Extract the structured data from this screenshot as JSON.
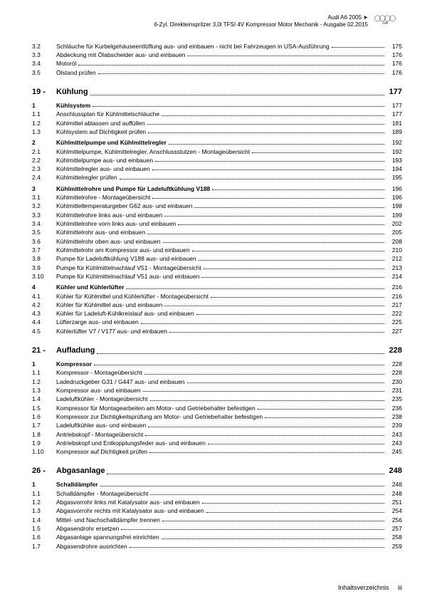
{
  "header": {
    "line1": "Audi A6 2005 ➤",
    "line2": "6-Zyl. Direkteinspritzer 3,0l TFSI 4V Kompressor Motor Mechanik - Ausgabe 02.2015",
    "logo_label": "Audi"
  },
  "continuation": [
    {
      "num": "3.2",
      "label": "Schläuche für Kurbelgehäuseentlüftung aus- und einbauen - nicht bei Fahrzeugen in USA-Ausführung",
      "page": "175"
    },
    {
      "num": "3.3",
      "label": "Abdeckung mit Ölabscheider aus- und einbauen",
      "page": "176"
    },
    {
      "num": "3.4",
      "label": "Motoröl",
      "page": "176"
    },
    {
      "num": "3.5",
      "label": "Ölstand prüfen",
      "page": "176"
    }
  ],
  "sections": [
    {
      "num": "19",
      "title": "Kühlung",
      "page": "177",
      "groups": [
        {
          "num": "1",
          "label": "Kühlsystem",
          "page": "177",
          "bold": true
        },
        {
          "num": "1.1",
          "label": "Anschlussplan für Kühlmittelschläuche",
          "page": "177"
        },
        {
          "num": "1.2",
          "label": "Kühlmittel ablassen und auffüllen",
          "page": "181"
        },
        {
          "num": "1.3",
          "label": "Kühlsystem auf Dichtigkeit prüfen",
          "page": "189"
        },
        {
          "num": "2",
          "label": "Kühlmittelpumpe und Kühlmittelregler",
          "page": "192",
          "bold": true
        },
        {
          "num": "2.1",
          "label": "Kühlmittelpumpe, Kühlmittelregler, Anschlussstutzen - Montageübersicht",
          "page": "192"
        },
        {
          "num": "2.2",
          "label": "Kühlmittelpumpe aus- und einbauen",
          "page": "193"
        },
        {
          "num": "2.3",
          "label": "Kühlmittelregler aus- und einbauen",
          "page": "194"
        },
        {
          "num": "2.4",
          "label": "Kühlmittelregler prüfen",
          "page": "195"
        },
        {
          "num": "3",
          "label": "Kühlmittelrohre und Pumpe für Ladeluftkühlung V188",
          "page": "196",
          "bold": true
        },
        {
          "num": "3.1",
          "label": "Kühlmittelrohre - Montageübersicht",
          "page": "196"
        },
        {
          "num": "3.2",
          "label": "Kühlmitteltemperaturgeber G62 aus- und einbauen",
          "page": "198"
        },
        {
          "num": "3.3",
          "label": "Kühlmittelrohre links aus- und einbauen",
          "page": "199"
        },
        {
          "num": "3.4",
          "label": "Kühlmittelrohre vorn links aus- und einbauen",
          "page": "202"
        },
        {
          "num": "3.5",
          "label": "Kühlmittelrohr aus- und einbauen",
          "page": "205"
        },
        {
          "num": "3.6",
          "label": "Kühlmittelrohr oben aus- und einbauen",
          "page": "208"
        },
        {
          "num": "3.7",
          "label": "Kühlmittelrohr am Kompressor aus- und einbauen",
          "page": "210"
        },
        {
          "num": "3.8",
          "label": "Pumpe für Ladeluftkühlung V188 aus- und einbauen",
          "page": "212"
        },
        {
          "num": "3.9",
          "label": "Pumpe für Kühlmittelnachlauf V51 - Montageübersicht",
          "page": "213"
        },
        {
          "num": "3.10",
          "label": "Pumpe für Kühlmittelnachlauf V51 aus- und einbauen",
          "page": "214"
        },
        {
          "num": "4",
          "label": "Kühler und Kühlerlüfter",
          "page": "216",
          "bold": true
        },
        {
          "num": "4.1",
          "label": "Kühler für Kühlmittel und Kühlerlüfter - Montageübersicht",
          "page": "216"
        },
        {
          "num": "4.2",
          "label": "Kühler für Kühlmittel aus- und einbauen",
          "page": "217"
        },
        {
          "num": "4.3",
          "label": "Kühler für Ladeluft-Kühlkreislauf aus- und einbauen",
          "page": "222"
        },
        {
          "num": "4.4",
          "label": "Lüfterzarge aus- und einbauen",
          "page": "225"
        },
        {
          "num": "4.5",
          "label": "Kühlerlüfter V7 / V177 aus- und einbauen",
          "page": "227"
        }
      ]
    },
    {
      "num": "21",
      "title": "Aufladung",
      "page": "228",
      "groups": [
        {
          "num": "1",
          "label": "Kompressor",
          "page": "228",
          "bold": true
        },
        {
          "num": "1.1",
          "label": "Kompressor - Montageübersicht",
          "page": "228"
        },
        {
          "num": "1.2",
          "label": "Ladedruckgeber G31 / G447 aus- und einbauen",
          "page": "230"
        },
        {
          "num": "1.3",
          "label": "Kompressor aus- und einbauen",
          "page": "231"
        },
        {
          "num": "1.4",
          "label": "Ladeluftkühler - Montageübersicht",
          "page": "235"
        },
        {
          "num": "1.5",
          "label": "Kompressor für Montagearbeiten am Motor- und Getriebehalter befestigen",
          "page": "236"
        },
        {
          "num": "1.6",
          "label": "Kompressor zur Dichtigkeitsprüfung am Motor- und Getriebehalter befestigen",
          "page": "238"
        },
        {
          "num": "1.7",
          "label": "Ladeluftkühler aus- und einbauen",
          "page": "239"
        },
        {
          "num": "1.8",
          "label": "Antriebskopf - Montageübersicht",
          "page": "243"
        },
        {
          "num": "1.9",
          "label": "Antriebskopf und Entkopplungsfeder aus- und einbauen",
          "page": "243"
        },
        {
          "num": "1.10",
          "label": "Kompressor auf Dichtigkeit prüfen",
          "page": "245"
        }
      ]
    },
    {
      "num": "26",
      "title": "Abgasanlage",
      "page": "248",
      "groups": [
        {
          "num": "1",
          "label": "Schalldämpfer",
          "page": "248",
          "bold": true
        },
        {
          "num": "1.1",
          "label": "Schalldämpfer - Montageübersicht",
          "page": "248"
        },
        {
          "num": "1.2",
          "label": "Abgasvorrohr links mit Katalysator aus- und einbauen",
          "page": "251"
        },
        {
          "num": "1.3",
          "label": "Abgasvorrohr rechts mit Katalysator aus- und einbauen",
          "page": "254"
        },
        {
          "num": "1.4",
          "label": "Mittel- und Nachschalldämpfer trennen",
          "page": "256"
        },
        {
          "num": "1.5",
          "label": "Abgasendrohr ersetzen",
          "page": "257"
        },
        {
          "num": "1.6",
          "label": "Abgasanlage spannungsfrei einrichten",
          "page": "258"
        },
        {
          "num": "1.7",
          "label": "Abgasendrohre ausrichten",
          "page": "259"
        }
      ]
    }
  ],
  "footer": {
    "label": "Inhaltsverzeichnis",
    "page": "iii"
  }
}
